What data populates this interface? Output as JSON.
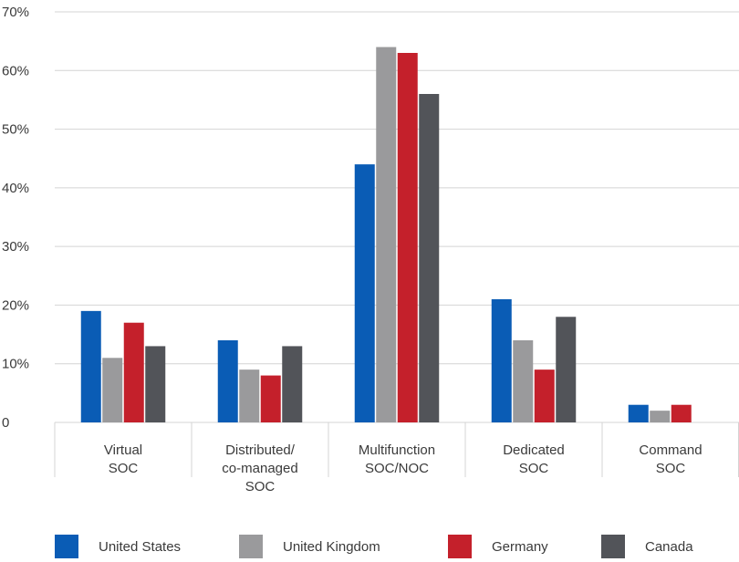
{
  "chart_data": {
    "type": "bar",
    "title": "",
    "xlabel": "",
    "ylabel": "",
    "categories": [
      [
        "Virtual",
        "SOC"
      ],
      [
        "Distributed/",
        "co-managed",
        "SOC"
      ],
      [
        "Multifunction",
        "SOC/NOC"
      ],
      [
        "Dedicated",
        "SOC"
      ],
      [
        "Command",
        "SOC"
      ]
    ],
    "ylim": [
      0,
      70
    ],
    "yticks": [
      0,
      10,
      20,
      30,
      40,
      50,
      60,
      70
    ],
    "ytick_labels": [
      "0",
      "10%",
      "20%",
      "30%",
      "40%",
      "50%",
      "60%",
      "70%"
    ],
    "grid": true,
    "legend_position": "bottom",
    "series": [
      {
        "name": "United States",
        "color": "#0a5cb5",
        "values": [
          19,
          14,
          44,
          21,
          3
        ]
      },
      {
        "name": "United Kingdom",
        "color": "#9a9a9c",
        "values": [
          11,
          9,
          64,
          14,
          2
        ]
      },
      {
        "name": "Germany",
        "color": "#c4202b",
        "values": [
          17,
          8,
          63,
          9,
          3
        ]
      },
      {
        "name": "Canada",
        "color": "#525459",
        "values": [
          13,
          13,
          56,
          18,
          null
        ]
      }
    ]
  }
}
